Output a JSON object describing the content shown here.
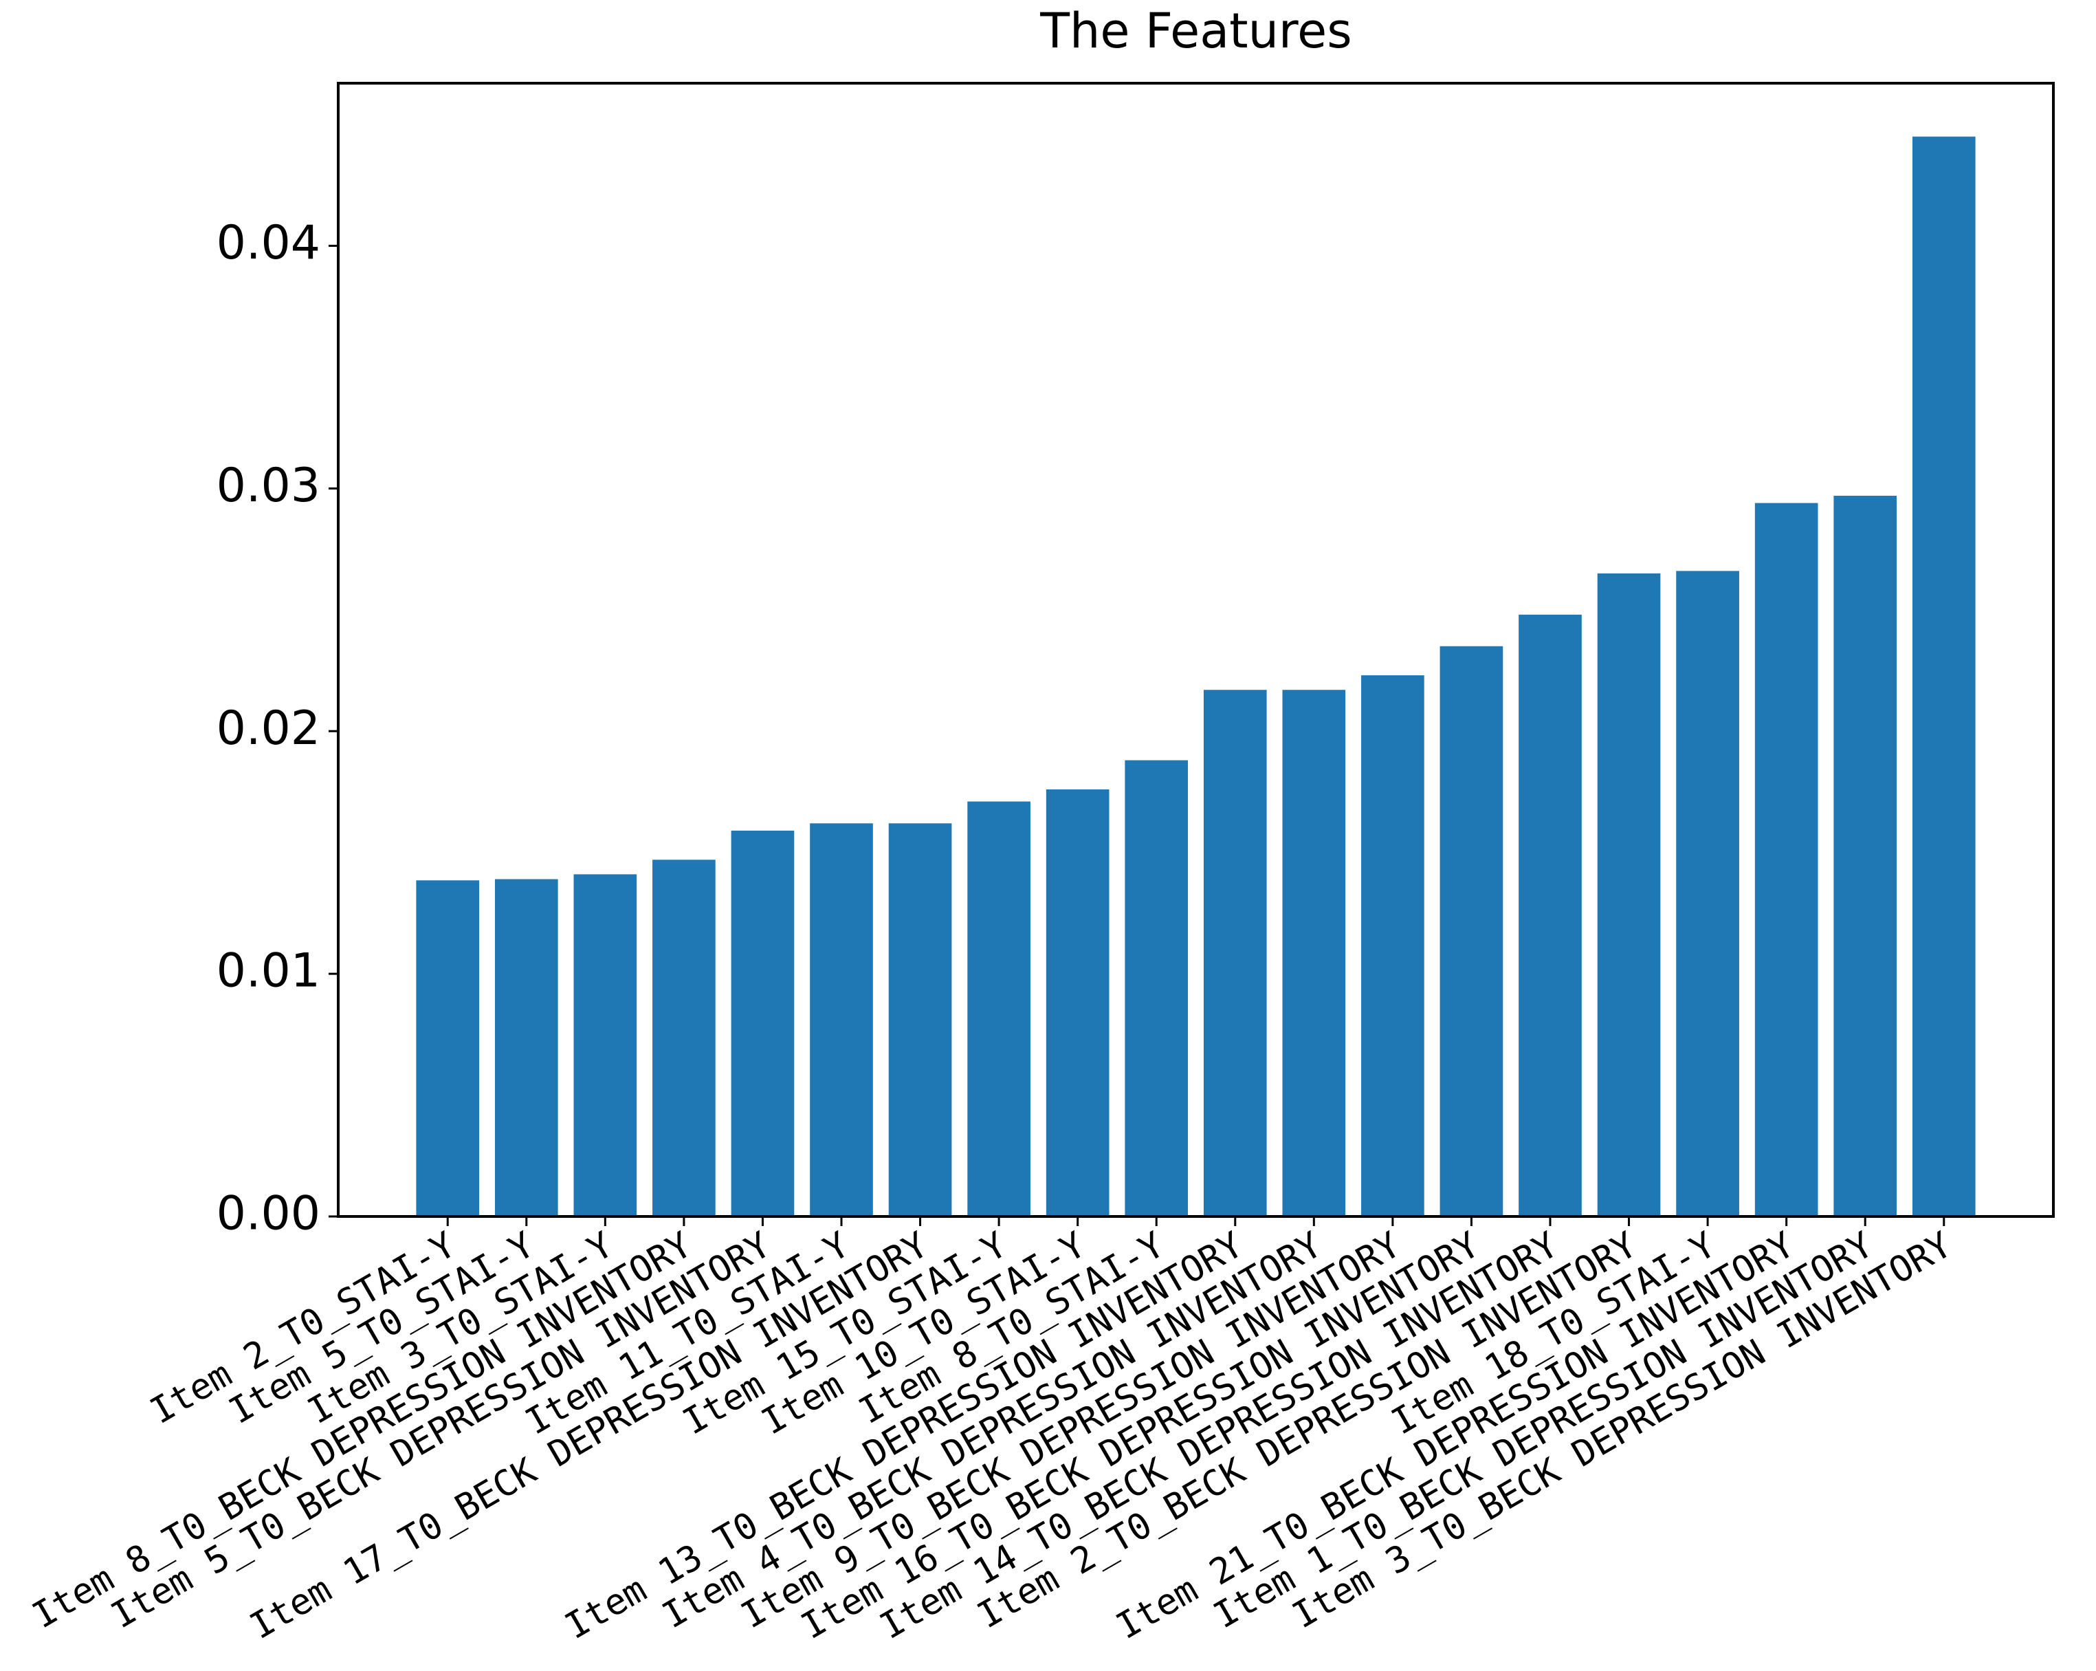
{
  "chart_data": {
    "type": "bar",
    "title": "The Features",
    "categories": [
      "Item 2_T0_STAI-Y",
      "Item 5_T0_STAI-Y",
      "Item 3_T0_STAI-Y",
      "Item 8_T0_BECK DEPRESSION INVENTORY",
      "Item 5_T0_BECK DEPRESSION INVENTORY",
      "Item 11_T0_STAI-Y",
      "Item 17_T0_BECK DEPRESSION INVENTORY",
      "Item 15_T0_STAI-Y",
      "Item 10_T0_STAI-Y",
      "Item 8_T0_STAI-Y",
      "Item 13_T0_BECK DEPRESSION INVENTORY",
      "Item 4_T0_BECK DEPRESSION INVENTORY",
      "Item 9_T0_BECK DEPRESSION INVENTORY",
      "Item 16_T0_BECK DEPRESSION INVENTORY",
      "Item 14_T0_BECK DEPRESSION INVENTORY",
      "Item 2_T0_BECK DEPRESSION INVENTORY",
      "Item 18_T0_STAI-Y",
      "Item 21_T0_BECK DEPRESSION INVENTORY",
      "Item 1_T0_BECK DEPRESSION INVENTORY",
      "Item 3_T0_BECK DEPRESSION INVENTORY"
    ],
    "values": [
      0.01385,
      0.0139,
      0.0141,
      0.0147,
      0.0159,
      0.0162,
      0.0162,
      0.0171,
      0.0176,
      0.0188,
      0.0217,
      0.0217,
      0.0223,
      0.0235,
      0.0248,
      0.0265,
      0.0266,
      0.0294,
      0.0297,
      0.0445
    ],
    "color": "#1f77b4",
    "ylim": [
      0,
      0.0467
    ],
    "yticks": [
      {
        "value": 0,
        "label": "0.00"
      },
      0.01,
      0.02,
      0.03,
      0.04
    ],
    "grid": false
  }
}
